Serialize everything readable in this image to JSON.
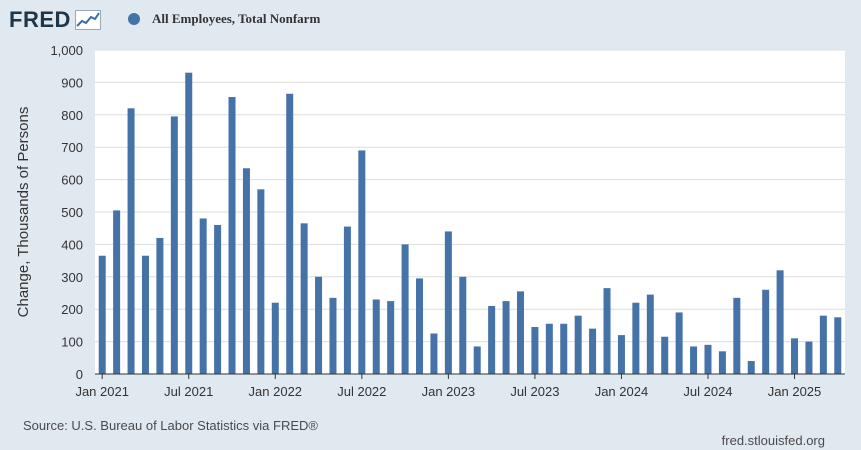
{
  "header": {
    "logo_text": "FRED",
    "series_name": "All Employees, Total Nonfarm"
  },
  "colors": {
    "bar": "#4572a7",
    "background": "#e1e9f0",
    "plot_background": "#ffffff",
    "grid": "#dddddd"
  },
  "footer": {
    "source": "Source: U.S. Bureau of Labor Statistics via FRED®",
    "site": "fred.stlouisfed.org"
  },
  "chart_data": {
    "type": "bar",
    "title": "All Employees, Total Nonfarm",
    "ylabel": "Change, Thousands of Persons",
    "xlabel": "",
    "ylim": [
      0,
      1000
    ],
    "yticks": [
      {
        "value": 0,
        "label": "0"
      },
      {
        "value": 100,
        "label": "100"
      },
      {
        "value": 200,
        "label": "200"
      },
      {
        "value": 300,
        "label": "300"
      },
      {
        "value": 400,
        "label": "400"
      },
      {
        "value": 500,
        "label": "500"
      },
      {
        "value": 600,
        "label": "600"
      },
      {
        "value": 700,
        "label": "700"
      },
      {
        "value": 800,
        "label": "800"
      },
      {
        "value": 900,
        "label": "900"
      },
      {
        "value": 1000,
        "label": "1,000"
      }
    ],
    "xticks": [
      {
        "category": "2021-01",
        "label": "Jan 2021"
      },
      {
        "category": "2021-07",
        "label": "Jul 2021"
      },
      {
        "category": "2022-01",
        "label": "Jan 2022"
      },
      {
        "category": "2022-07",
        "label": "Jul 2022"
      },
      {
        "category": "2023-01",
        "label": "Jan 2023"
      },
      {
        "category": "2023-07",
        "label": "Jul 2023"
      },
      {
        "category": "2024-01",
        "label": "Jan 2024"
      },
      {
        "category": "2024-07",
        "label": "Jul 2024"
      },
      {
        "category": "2025-01",
        "label": "Jan 2025"
      }
    ],
    "categories": [
      "2021-01",
      "2021-02",
      "2021-03",
      "2021-04",
      "2021-05",
      "2021-06",
      "2021-07",
      "2021-08",
      "2021-09",
      "2021-10",
      "2021-11",
      "2021-12",
      "2022-01",
      "2022-02",
      "2022-03",
      "2022-04",
      "2022-05",
      "2022-06",
      "2022-07",
      "2022-08",
      "2022-09",
      "2022-10",
      "2022-11",
      "2022-12",
      "2023-01",
      "2023-02",
      "2023-03",
      "2023-04",
      "2023-05",
      "2023-06",
      "2023-07",
      "2023-08",
      "2023-09",
      "2023-10",
      "2023-11",
      "2023-12",
      "2024-01",
      "2024-02",
      "2024-03",
      "2024-04",
      "2024-05",
      "2024-06",
      "2024-07",
      "2024-08",
      "2024-09",
      "2024-10",
      "2024-11",
      "2024-12",
      "2025-01",
      "2025-02",
      "2025-03",
      "2025-04"
    ],
    "values": [
      365,
      505,
      820,
      365,
      420,
      795,
      930,
      480,
      460,
      855,
      635,
      570,
      220,
      865,
      465,
      300,
      235,
      455,
      690,
      230,
      225,
      400,
      295,
      125,
      440,
      300,
      85,
      210,
      225,
      255,
      145,
      155,
      155,
      180,
      140,
      265,
      120,
      220,
      245,
      115,
      190,
      85,
      90,
      70,
      235,
      40,
      260,
      320,
      110,
      100,
      180,
      175
    ],
    "grid": true,
    "legend": "top-left"
  }
}
